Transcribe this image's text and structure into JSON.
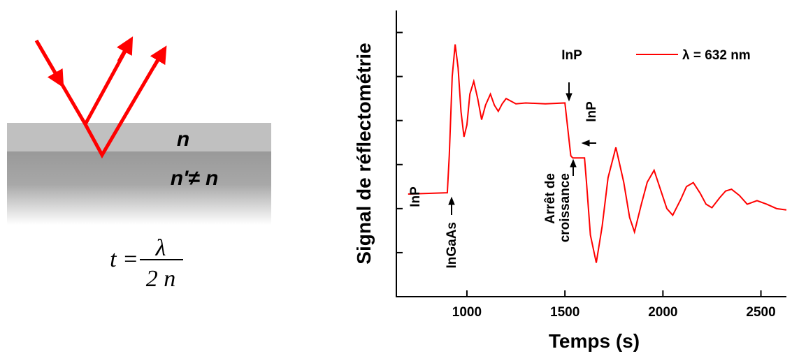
{
  "diagram": {
    "layer_labels": [
      "n",
      "n'≠ n"
    ],
    "formula": {
      "lhs": "t =",
      "numerator": "λ",
      "denominator": "2 n"
    }
  },
  "chart_data": {
    "type": "line",
    "x_label": "Temps (s)",
    "y_label": "Signal de réflectométrie",
    "x": [
      700,
      900,
      910,
      925,
      940,
      955,
      970,
      985,
      1000,
      1015,
      1035,
      1055,
      1075,
      1095,
      1120,
      1140,
      1160,
      1180,
      1200,
      1250,
      1300,
      1400,
      1500,
      1510,
      1530,
      1540,
      1600,
      1610,
      1630,
      1660,
      1690,
      1720,
      1760,
      1800,
      1830,
      1855,
      1890,
      1920,
      1955,
      1990,
      2020,
      2050,
      2090,
      2120,
      2155,
      2190,
      2220,
      2250,
      2290,
      2320,
      2350,
      2390,
      2430,
      2480,
      2530,
      2580,
      2630
    ],
    "series": [
      {
        "name": "λ = 632 nm",
        "color": "#ff0000",
        "values": [
          2.33,
          2.36,
          3.2,
          5.0,
          5.73,
          5.2,
          4.2,
          3.63,
          3.9,
          4.6,
          4.89,
          4.5,
          4.02,
          4.35,
          4.6,
          4.35,
          4.21,
          4.38,
          4.5,
          4.38,
          4.4,
          4.38,
          4.4,
          4.0,
          3.2,
          3.15,
          3.15,
          2.6,
          1.4,
          0.77,
          1.6,
          2.7,
          3.39,
          2.6,
          1.8,
          1.47,
          2.1,
          2.6,
          2.87,
          2.4,
          2.0,
          1.85,
          2.2,
          2.5,
          2.59,
          2.35,
          2.1,
          2.02,
          2.25,
          2.4,
          2.44,
          2.3,
          2.1,
          2.18,
          2.1,
          2.0,
          1.97
        ]
      }
    ],
    "xlim": [
      640,
      2630
    ],
    "xticks": [
      1000,
      1500,
      2000,
      2500
    ],
    "ylim": [
      0,
      6.5
    ],
    "yticks": [
      1,
      2,
      3,
      4,
      5,
      6
    ],
    "annotations": [
      "InP",
      "InGaAs",
      "InP",
      "InP",
      "Arrêt de",
      "croissance"
    ]
  }
}
